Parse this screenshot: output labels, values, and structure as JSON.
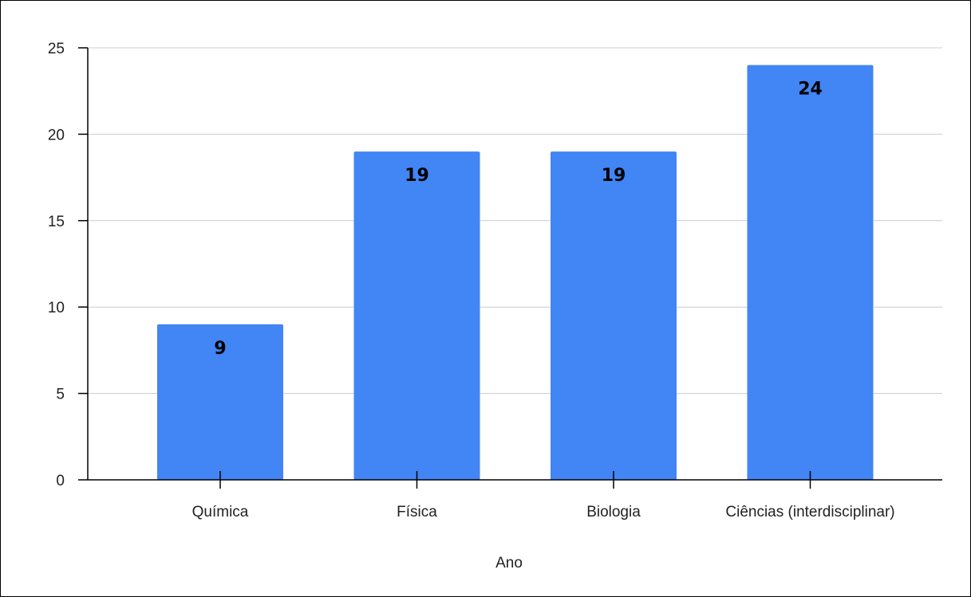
{
  "chart_data": {
    "type": "bar",
    "title": "",
    "xlabel": "Ano",
    "ylabel": "",
    "categories": [
      "Química",
      "Física",
      "Biologia",
      "Ciências (interdisciplinar)"
    ],
    "values": [
      9,
      19,
      19,
      24
    ],
    "ylim": [
      0,
      25
    ],
    "yticks": [
      0,
      5,
      10,
      15,
      20,
      25
    ],
    "grid": true,
    "legend": "none",
    "bar_color": "#4285f4",
    "data_labels_shown": true
  }
}
